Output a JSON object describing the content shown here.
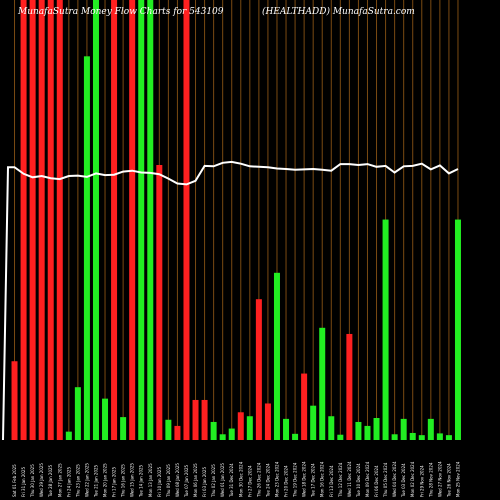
{
  "chart_data": {
    "type": "bar",
    "title_left": "MunafaSutra  Money Flow  Charts for 543109",
    "title_right": "(HEALTHADD) MunafaSutra.com",
    "colors": {
      "background": "#000000",
      "grid": "#7a4a12",
      "up": "#22ee22",
      "down": "#ff2020",
      "line": "#ffffff"
    },
    "ylim": [
      0,
      100
    ],
    "categories": [
      "Sat 01 Feb 2025",
      "Fri 31 Jan 2025",
      "Thu 30 Jan 2025",
      "Wed 29 Jan 2025",
      "Tue 28 Jan 2025",
      "Mon 27 Jan 2025",
      "Fri 24 Jan 2025",
      "Thu 23 Jan 2025",
      "Wed 22 Jan 2025",
      "Tue 21 Jan 2025",
      "Mon 20 Jan 2025",
      "Fri 17 Jan 2025",
      "Thu 16 Jan 2025",
      "Wed 15 Jan 2025",
      "Tue 14 Jan 2025",
      "Mon 13 Jan 2025",
      "Fri 10 Jan 2025",
      "Thu 09 Jan 2025",
      "Wed 08 Jan 2025",
      "Tue 07 Jan 2025",
      "Mon 06 Jan 2025",
      "Fri 03 Jan 2025",
      "Thu 02 Jan 2025",
      "Wed 01 Jan 2025",
      "Tue 31 Dec 2024",
      "Mon 30 Dec 2024",
      "Fri 27 Dec 2024",
      "Thu 26 Dec 2024",
      "Tue 24 Dec 2024",
      "Mon 23 Dec 2024",
      "Fri 20 Dec 2024",
      "Thu 19 Dec 2024",
      "Wed 18 Dec 2024",
      "Tue 17 Dec 2024",
      "Mon 16 Dec 2024",
      "Fri 13 Dec 2024",
      "Thu 12 Dec 2024",
      "Wed 11 Dec 2024",
      "Tue 10 Dec 2024",
      "Mon 09 Dec 2024",
      "Fri 06 Dec 2024",
      "Thu 05 Dec 2024",
      "Wed 04 Dec 2024",
      "Tue 03 Dec 2024",
      "Mon 02 Dec 2024",
      "Fri 29 Nov 2024",
      "Thu 28 Nov 2024",
      "Wed 27 Nov 2024",
      "Tue 26 Nov 2024",
      "Mon 25 Nov 2024"
    ],
    "series": [
      {
        "values": [
          17.9,
          100,
          100,
          100,
          100,
          100,
          1.9,
          12,
          87.2,
          100,
          9.4,
          100,
          5.2,
          100,
          100,
          100,
          62.5,
          4.6,
          3.2,
          100,
          9.1,
          9.1,
          4.1,
          1.3,
          2.6,
          6.3,
          5.4,
          32,
          8.3,
          38,
          4.8,
          1.4,
          15.1,
          7.8,
          25.5,
          5.4,
          1.2,
          24.1,
          4.1,
          3.2,
          5,
          50.1,
          1.3,
          4.8,
          1.6,
          1.1,
          4.8,
          1.5,
          1.1,
          50.1
        ],
        "colors": [
          "red",
          "red",
          "red",
          "red",
          "red",
          "red",
          "green",
          "green",
          "green",
          "green",
          "green",
          "red",
          "green",
          "red",
          "green",
          "green",
          "red",
          "green",
          "red",
          "red",
          "red",
          "red",
          "green",
          "green",
          "green",
          "red",
          "green",
          "red",
          "red",
          "green",
          "green",
          "green",
          "red",
          "green",
          "green",
          "green",
          "green",
          "red",
          "green",
          "green",
          "green",
          "green",
          "green",
          "green",
          "green",
          "green",
          "green",
          "green",
          "green",
          "green"
        ]
      }
    ],
    "line": [
      62,
      60.5,
      59.7,
      60,
      59.5,
      59.3,
      60,
      60.1,
      59.8,
      60.6,
      60.2,
      60.3,
      61,
      61.2,
      60.8,
      60.7,
      60.4,
      59.4,
      58.3,
      58.1,
      58.9,
      62.3,
      62.2,
      63,
      63.2,
      62.8,
      62.2,
      62.1,
      62.0,
      61.7,
      61.6,
      61.4,
      61.5,
      61.6,
      61.4,
      61.2,
      62.7,
      62.7,
      62.5,
      62.7,
      62.1,
      62.3,
      60.8,
      62.2,
      62.3,
      62.8,
      61.5,
      62.4,
      60.6,
      61.6
    ]
  }
}
